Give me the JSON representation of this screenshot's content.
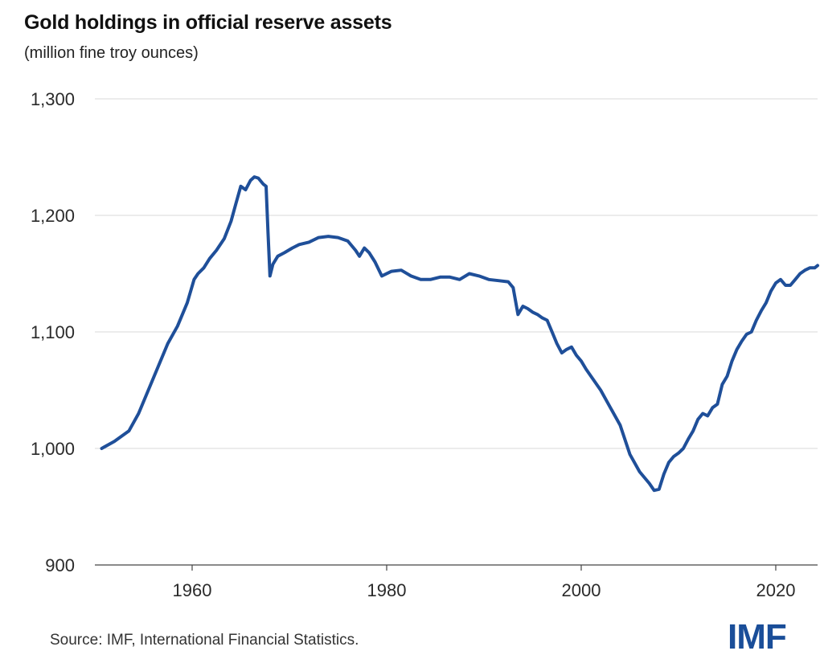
{
  "header": {
    "title": "Gold holdings in official reserve assets",
    "subtitle": "(million fine troy ounces)"
  },
  "footer": {
    "source": "Source: IMF, International Financial Statistics.",
    "logo_text": "IMF"
  },
  "colors": {
    "line": "#1f4f99",
    "grid": "#d9d9d9",
    "axis": "#444444",
    "logo": "#1a4e99"
  },
  "chart_data": {
    "type": "line",
    "title": "Gold holdings in official reserve assets",
    "subtitle": "(million fine troy ounces)",
    "xlabel": "",
    "ylabel": "",
    "xlim": [
      1950,
      2024.3
    ],
    "ylim": [
      900,
      1300
    ],
    "x_ticks": [
      1960,
      1980,
      2000,
      2020
    ],
    "x_tick_labels": [
      "1960",
      "1980",
      "2000",
      "2020"
    ],
    "y_ticks": [
      900,
      1000,
      1100,
      1200,
      1300
    ],
    "y_tick_labels": [
      "900",
      "1,000",
      "1,100",
      "1,200",
      "1,300"
    ],
    "grid": true,
    "series": [
      {
        "x": [
          1950.7,
          1952,
          1953.5,
          1954.5,
          1955.5,
          1956.5,
          1957.5,
          1958.5,
          1959.5,
          1960.2,
          1960.6,
          1961.2,
          1961.8,
          1962.5,
          1963.3,
          1964,
          1964.5,
          1965,
          1965.5,
          1966,
          1966.4,
          1966.8,
          1967.3,
          1967.6,
          1967.8,
          1968,
          1968.3,
          1968.8,
          1969.5,
          1970.3,
          1971,
          1972,
          1973,
          1974,
          1975,
          1976,
          1976.8,
          1977.2,
          1977.7,
          1978.2,
          1978.8,
          1979.5,
          1980.5,
          1981.5,
          1982.5,
          1983.5,
          1984.5,
          1985.5,
          1986.5,
          1987.5,
          1988.5,
          1989.5,
          1990.5,
          1991.5,
          1992.5,
          1993,
          1993.5,
          1994,
          1994.5,
          1995,
          1995.5,
          1996,
          1996.5,
          1997,
          1997.5,
          1998,
          1998.5,
          1999,
          1999.5,
          2000,
          2000.5,
          2001,
          2002,
          2003,
          2004,
          2005,
          2006,
          2007,
          2007.5,
          2008,
          2008.5,
          2009,
          2009.5,
          2010,
          2010.5,
          2011,
          2011.5,
          2012,
          2012.5,
          2013,
          2013.5,
          2014,
          2014.5,
          2015,
          2015.5,
          2016,
          2016.5,
          2017,
          2017.5,
          2018,
          2018.5,
          2019,
          2019.5,
          2020,
          2020.5,
          2021,
          2021.5,
          2022,
          2022.5,
          2023,
          2023.5,
          2024,
          2024.3
        ],
        "values": [
          1000,
          1006,
          1015,
          1030,
          1050,
          1070,
          1090,
          1105,
          1125,
          1145,
          1150,
          1155,
          1163,
          1170,
          1180,
          1195,
          1210,
          1225,
          1222,
          1230,
          1233,
          1232,
          1227,
          1225,
          1185,
          1148,
          1158,
          1165,
          1168,
          1172,
          1175,
          1177,
          1181,
          1182,
          1181,
          1178,
          1170,
          1165,
          1172,
          1168,
          1160,
          1148,
          1152,
          1153,
          1148,
          1145,
          1145,
          1147,
          1147,
          1145,
          1150,
          1148,
          1145,
          1144,
          1143,
          1138,
          1115,
          1122,
          1120,
          1117,
          1115,
          1112,
          1110,
          1100,
          1090,
          1082,
          1085,
          1087,
          1080,
          1075,
          1068,
          1062,
          1050,
          1035,
          1020,
          995,
          980,
          970,
          964,
          965,
          978,
          988,
          993,
          996,
          1000,
          1008,
          1015,
          1025,
          1030,
          1028,
          1035,
          1038,
          1055,
          1062,
          1075,
          1085,
          1092,
          1098,
          1100,
          1110,
          1118,
          1125,
          1135,
          1142,
          1145,
          1140,
          1140,
          1145,
          1150,
          1153,
          1155,
          1155,
          1157
        ]
      }
    ]
  }
}
